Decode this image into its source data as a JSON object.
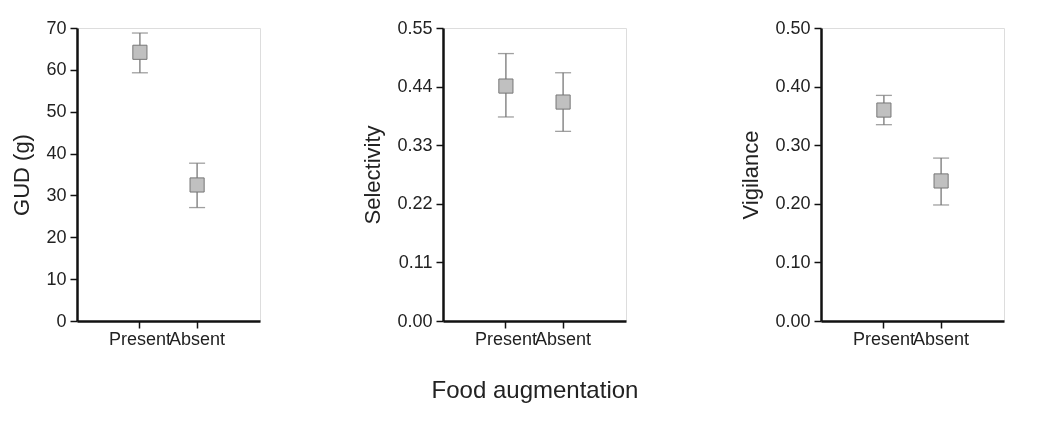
{
  "chart_data": [
    {
      "type": "scatter",
      "ylabel": "GUD (g)",
      "categories": [
        "Present",
        "Absent"
      ],
      "series": [
        {
          "color": "#c0c0c0",
          "values": [
            64.2,
            32.5
          ],
          "errors": [
            [
              59.3,
              68.8
            ],
            [
              27.1,
              37.7
            ]
          ]
        }
      ],
      "ylim": [
        0,
        70
      ],
      "yticks": [
        0,
        10,
        20,
        30,
        40,
        50,
        60,
        70
      ],
      "marker": "square",
      "grid": false
    },
    {
      "type": "scatter",
      "ylabel": "Selectivity",
      "xlabel": "Food augmentation",
      "categories": [
        "Present",
        "Absent"
      ],
      "series": [
        {
          "color": "#c0c0c0",
          "values": [
            0.441,
            0.411
          ],
          "errors": [
            [
              0.383,
              0.502
            ],
            [
              0.356,
              0.466
            ]
          ]
        }
      ],
      "ylim": [
        0,
        0.55
      ],
      "yticks": [
        {
          "value": 0,
          "label": "0.00"
        },
        0.11,
        0.22,
        0.33,
        0.44,
        0.55
      ],
      "marker": "square",
      "grid": false
    },
    {
      "type": "scatter",
      "ylabel": "Vigilance",
      "categories": [
        "Present",
        "Absent"
      ],
      "series": [
        {
          "color": "#c0c0c0",
          "values": [
            0.36,
            0.239
          ],
          "errors": [
            [
              0.335,
              0.385
            ],
            [
              0.198,
              0.278
            ]
          ]
        }
      ],
      "ylim": [
        0,
        0.5
      ],
      "yticks": [
        {
          "value": 0,
          "label": "0.00"
        },
        {
          "value": 0.1,
          "label": "0.10"
        },
        {
          "value": 0.2,
          "label": "0.20"
        },
        {
          "value": 0.3,
          "label": "0.30"
        },
        {
          "value": 0.4,
          "label": "0.40"
        },
        {
          "value": 0.5,
          "label": "0.50"
        }
      ],
      "marker": "square",
      "grid": false
    }
  ]
}
